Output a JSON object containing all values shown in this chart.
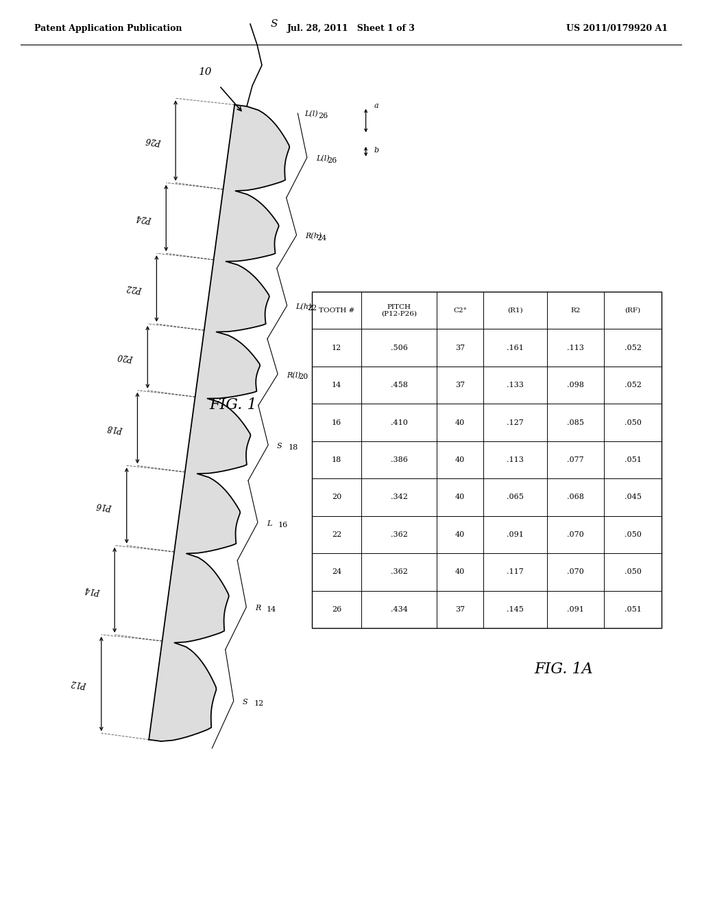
{
  "header_left": "Patent Application Publication",
  "header_mid": "Jul. 28, 2011   Sheet 1 of 3",
  "header_right": "US 2011/0179920 A1",
  "fig1_label": "FIG. 1",
  "fig1a_label": "FIG. 1A",
  "table_headers": [
    "TOOTH #",
    "PITCH\n(P12-P26)",
    "C2°",
    "(R1)",
    "R2",
    "(RF)"
  ],
  "table_data": [
    [
      "12",
      ".506",
      "37",
      ".161",
      ".113",
      ".052"
    ],
    [
      "14",
      ".458",
      "37",
      ".133",
      ".098",
      ".052"
    ],
    [
      "16",
      ".410",
      "40",
      ".127",
      ".085",
      ".050"
    ],
    [
      "18",
      ".386",
      "40",
      ".113",
      ".077",
      ".051"
    ],
    [
      "20",
      ".342",
      "40",
      ".065",
      ".068",
      ".045"
    ],
    [
      "22",
      ".362",
      "40",
      ".091",
      ".070",
      ".050"
    ],
    [
      "24",
      ".362",
      "40",
      ".117",
      ".070",
      ".050"
    ],
    [
      "26",
      ".434",
      "37",
      ".145",
      ".091",
      ".051"
    ]
  ],
  "pitches": [
    0.506,
    0.458,
    0.41,
    0.386,
    0.342,
    0.362,
    0.362,
    0.434
  ],
  "tooth_ids": [
    "12",
    "14",
    "16",
    "18",
    "20",
    "22",
    "24",
    "26"
  ],
  "pitch_labels": [
    "P12",
    "P14",
    "P16",
    "P18",
    "P20",
    "P22",
    "P24",
    "P26"
  ],
  "right_labels": [
    "S",
    "R",
    "L",
    "S",
    "R(l)",
    "L(h)",
    "R(h)",
    "L(l)"
  ],
  "right_nums": [
    "12",
    "14",
    "16",
    "18",
    "20",
    "22",
    "24",
    "26"
  ],
  "bg_color": "#ffffff",
  "line_color": "#000000",
  "text_color": "#000000"
}
